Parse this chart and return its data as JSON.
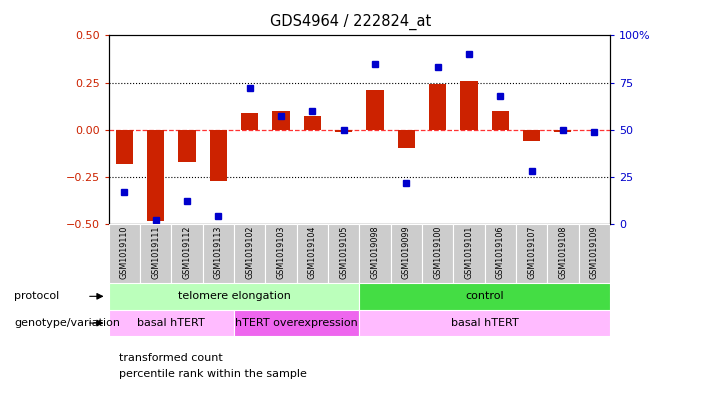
{
  "title": "GDS4964 / 222824_at",
  "samples": [
    "GSM1019110",
    "GSM1019111",
    "GSM1019112",
    "GSM1019113",
    "GSM1019102",
    "GSM1019103",
    "GSM1019104",
    "GSM1019105",
    "GSM1019098",
    "GSM1019099",
    "GSM1019100",
    "GSM1019101",
    "GSM1019106",
    "GSM1019107",
    "GSM1019108",
    "GSM1019109"
  ],
  "transformed_count": [
    -0.18,
    -0.485,
    -0.17,
    -0.27,
    0.09,
    0.1,
    0.07,
    -0.01,
    0.21,
    -0.095,
    0.24,
    0.26,
    0.1,
    -0.06,
    -0.01,
    0.0
  ],
  "percentile_rank": [
    17,
    2,
    12,
    4,
    72,
    57,
    60,
    50,
    85,
    22,
    83,
    90,
    68,
    28,
    50,
    49
  ],
  "bar_color": "#cc2200",
  "dot_color": "#0000cc",
  "ylim_left": [
    -0.5,
    0.5
  ],
  "ylim_right": [
    0,
    100
  ],
  "yticks_left": [
    -0.5,
    -0.25,
    0,
    0.25,
    0.5
  ],
  "yticks_right": [
    0,
    25,
    50,
    75,
    100
  ],
  "ytick_labels_right": [
    "0",
    "25",
    "50",
    "75",
    "100%"
  ],
  "protocol_groups": [
    {
      "label": "telomere elongation",
      "start": 0,
      "end": 8,
      "color": "#bbffbb"
    },
    {
      "label": "control",
      "start": 8,
      "end": 16,
      "color": "#44dd44"
    }
  ],
  "genotype_groups": [
    {
      "label": "basal hTERT",
      "start": 0,
      "end": 4,
      "color": "#ffbbff"
    },
    {
      "label": "hTERT overexpression",
      "start": 4,
      "end": 8,
      "color": "#ee66ee"
    },
    {
      "label": "basal hTERT",
      "start": 8,
      "end": 16,
      "color": "#ffbbff"
    }
  ],
  "left_axis_color": "#cc2200",
  "right_axis_color": "#0000cc",
  "bg_color": "#ffffff",
  "tick_label_bg": "#cccccc"
}
